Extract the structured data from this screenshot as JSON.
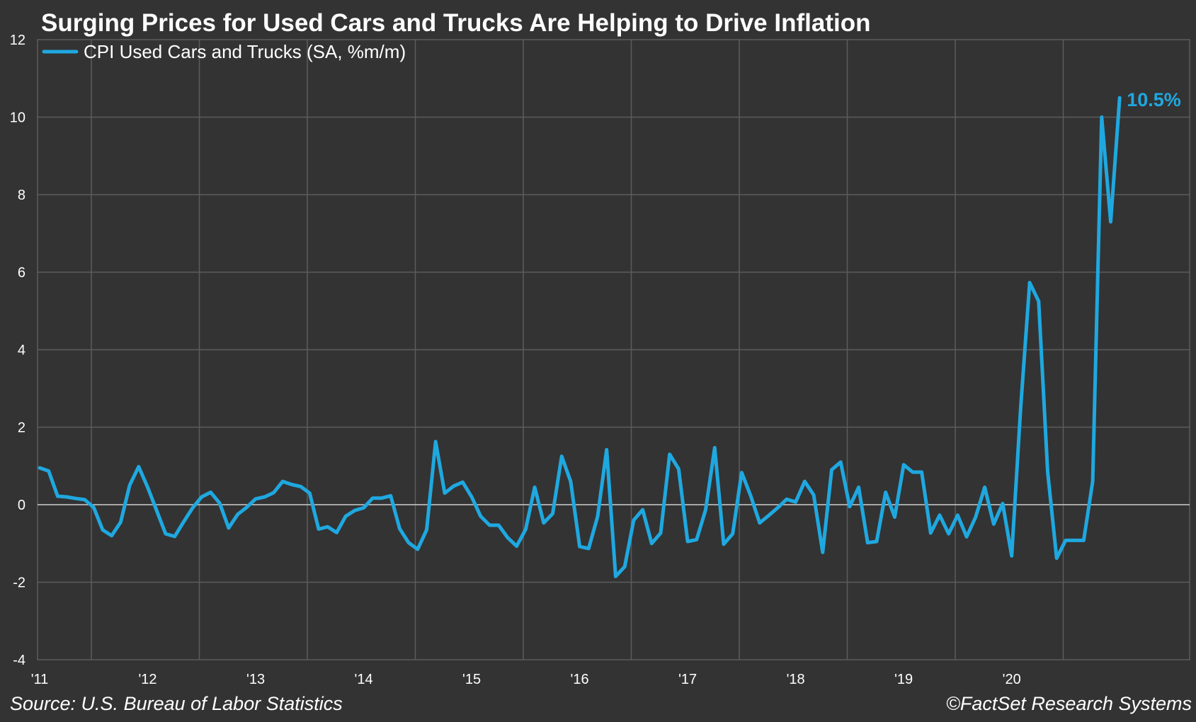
{
  "chart_data": {
    "type": "line",
    "title": "Surging Prices for Used Cars and Trucks Are Helping to Drive Inflation",
    "source": "Source: U.S. Bureau of Labor Statistics",
    "copyright": "©FactSet Research Systems",
    "series": [
      {
        "name": "CPI Used Cars and Trucks (SA, %m/m)",
        "color": "#1fa8e0",
        "last_value_label": "10.5%",
        "x_start": "2011-01",
        "frequency": "monthly",
        "values": [
          0.95,
          0.87,
          0.22,
          0.2,
          0.16,
          0.13,
          -0.07,
          -0.65,
          -0.8,
          -0.45,
          0.5,
          0.98,
          0.45,
          -0.15,
          -0.75,
          -0.82,
          -0.44,
          -0.08,
          0.2,
          0.32,
          0.04,
          -0.6,
          -0.25,
          -0.07,
          0.15,
          0.2,
          0.31,
          0.6,
          0.52,
          0.47,
          0.3,
          -0.63,
          -0.57,
          -0.72,
          -0.3,
          -0.15,
          -0.08,
          0.17,
          0.17,
          0.23,
          -0.62,
          -0.98,
          -1.15,
          -0.65,
          1.63,
          0.3,
          0.48,
          0.58,
          0.2,
          -0.3,
          -0.53,
          -0.53,
          -0.85,
          -1.07,
          -0.64,
          0.45,
          -0.47,
          -0.23,
          1.25,
          0.6,
          -1.08,
          -1.13,
          -0.3,
          1.42,
          -1.85,
          -1.6,
          -0.4,
          -0.13,
          -1.0,
          -0.73,
          1.3,
          0.92,
          -0.95,
          -0.9,
          -0.13,
          1.47,
          -1.02,
          -0.75,
          0.83,
          0.23,
          -0.47,
          -0.28,
          -0.08,
          0.14,
          0.07,
          0.6,
          0.25,
          -1.23,
          0.9,
          1.1,
          -0.05,
          0.45,
          -0.98,
          -0.95,
          0.32,
          -0.32,
          1.03,
          0.84,
          0.84,
          -0.73,
          -0.27,
          -0.75,
          -0.27,
          -0.83,
          -0.32,
          0.45,
          -0.5,
          0.03,
          -1.32,
          2.5,
          5.73,
          5.25,
          0.85,
          -1.38,
          -0.92,
          -0.92,
          -0.92,
          0.6,
          10.0,
          7.3,
          10.5
        ]
      }
    ],
    "x_tick_labels": [
      "'11",
      "'12",
      "'13",
      "'14",
      "'15",
      "'16",
      "'17",
      "'18",
      "'19",
      "'20"
    ],
    "y_tick_labels": [
      "12",
      "10",
      "8",
      "6",
      "4",
      "2",
      "0",
      "-2",
      "-4"
    ],
    "ylim": [
      -4,
      12
    ],
    "xlabel": "",
    "ylabel": "",
    "grid": true,
    "legend_position": "top-left"
  }
}
